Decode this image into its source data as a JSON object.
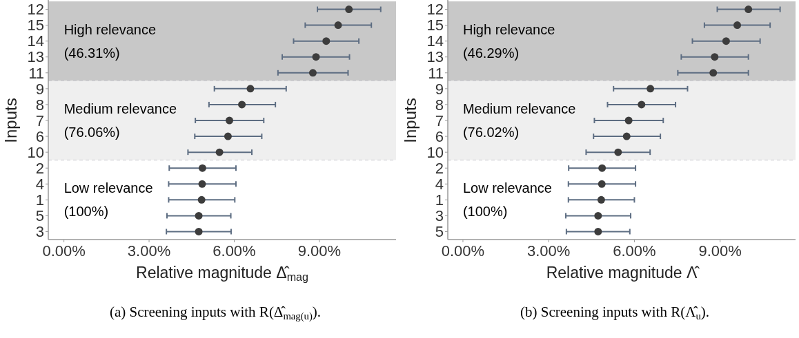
{
  "chart_data": [
    {
      "type": "scatter",
      "orientation": "horizontal",
      "marker": "circle",
      "categories": [
        "12",
        "15",
        "14",
        "13",
        "11",
        "9",
        "8",
        "7",
        "6",
        "10",
        "2",
        "4",
        "1",
        "5",
        "3"
      ],
      "series": [
        {
          "color": "#3d3d3d",
          "values": [
            10.04,
            9.66,
            9.24,
            8.88,
            8.77,
            6.57,
            6.27,
            5.83,
            5.78,
            5.48,
            4.88,
            4.87,
            4.85,
            4.75,
            4.75
          ],
          "errors": [
            [
              8.93,
              11.16
            ],
            [
              8.5,
              10.83
            ],
            [
              8.09,
              10.39
            ],
            [
              7.69,
              10.06
            ],
            [
              7.54,
              10.01
            ],
            [
              5.3,
              7.83
            ],
            [
              5.11,
              7.45
            ],
            [
              4.63,
              7.04
            ],
            [
              4.61,
              6.97
            ],
            [
              4.37,
              6.62
            ],
            [
              3.71,
              6.06
            ],
            [
              3.69,
              6.06
            ],
            [
              3.69,
              6.02
            ],
            [
              3.63,
              5.88
            ],
            [
              3.61,
              5.89
            ]
          ]
        }
      ],
      "xlim": [
        -0.55,
        11.7
      ],
      "xticks": [
        {
          "value": 0,
          "label": "0.00%"
        },
        {
          "value": 3,
          "label": "3.00%"
        },
        {
          "value": 6,
          "label": "6.00%"
        },
        {
          "value": 9,
          "label": "9.00%"
        }
      ],
      "xlabel": "Relative magnitude Δ̂$_{mag}$",
      "ylabel": "Inputs",
      "bands": [
        {
          "axis": "y",
          "from": "12",
          "to": "11",
          "label": "High relevance (46.31%)",
          "color": "#c8c8c8"
        },
        {
          "axis": "y",
          "from": "9",
          "to": "10",
          "label": "Medium relevance (76.06%)",
          "color": "#efefef"
        },
        {
          "axis": "y",
          "from": "2",
          "to": "3",
          "label": "Low relevance (100%)",
          "color": "#ffffff"
        }
      ],
      "annotations": [
        "(a) Screening inputs with R(Δ̂$_{mag(u)}$)."
      ]
    },
    {
      "type": "scatter",
      "orientation": "horizontal",
      "marker": "circle",
      "categories": [
        "12",
        "15",
        "14",
        "13",
        "11",
        "9",
        "8",
        "7",
        "6",
        "10",
        "2",
        "4",
        "1",
        "3",
        "5"
      ],
      "series": [
        {
          "color": "#3d3d3d",
          "values": [
            9.99,
            9.6,
            9.21,
            8.81,
            8.76,
            6.56,
            6.25,
            5.8,
            5.73,
            5.43,
            4.87,
            4.86,
            4.84,
            4.73,
            4.73
          ],
          "errors": [
            [
              8.9,
              11.1
            ],
            [
              8.45,
              10.75
            ],
            [
              8.03,
              10.4
            ],
            [
              7.64,
              9.99
            ],
            [
              7.52,
              9.99
            ],
            [
              5.27,
              7.86
            ],
            [
              5.06,
              7.44
            ],
            [
              4.6,
              7.01
            ],
            [
              4.57,
              6.91
            ],
            [
              4.31,
              6.55
            ],
            [
              3.7,
              6.04
            ],
            [
              3.69,
              6.04
            ],
            [
              3.69,
              6.0
            ],
            [
              3.6,
              5.87
            ],
            [
              3.62,
              5.84
            ]
          ]
        }
      ],
      "xlim": [
        -0.53,
        11.64
      ],
      "xticks": [
        {
          "value": 0,
          "label": "0.00%"
        },
        {
          "value": 3,
          "label": "3.00%"
        },
        {
          "value": 6,
          "label": "6.00%"
        },
        {
          "value": 9,
          "label": "9.00%"
        }
      ],
      "xlabel": "Relative magnitude Λ̂",
      "ylabel": "Inputs",
      "bands": [
        {
          "axis": "y",
          "from": "12",
          "to": "11",
          "label": "High relevance (46.29%)",
          "color": "#c8c8c8"
        },
        {
          "axis": "y",
          "from": "9",
          "to": "10",
          "label": "Medium relevance (76.02%)",
          "color": "#efefef"
        },
        {
          "axis": "y",
          "from": "2",
          "to": "5",
          "label": "Low relevance (100%)",
          "color": "#ffffff"
        }
      ],
      "annotations": [
        "(b) Screening inputs with R(Λ̂$_{u}$)."
      ]
    }
  ]
}
